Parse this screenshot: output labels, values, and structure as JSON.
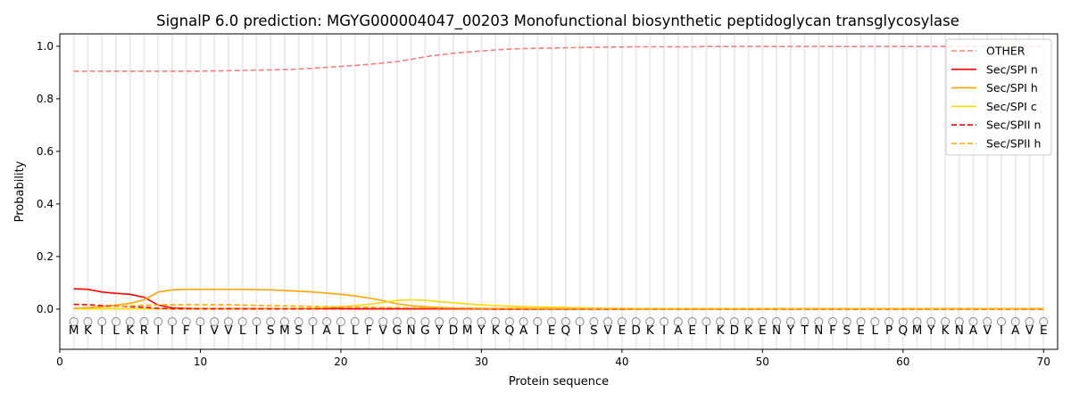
{
  "chart_data": {
    "type": "line",
    "title": "SignalP 6.0 prediction: MGYG000004047_00203 Monofunctional biosynthetic peptidoglycan transglycosylase",
    "xlabel": "Protein sequence",
    "ylabel": "Probability",
    "xlim": [
      0,
      71
    ],
    "ylim": [
      -0.153,
      1.047
    ],
    "xticks": [
      0,
      10,
      20,
      30,
      40,
      50,
      60,
      70
    ],
    "yticks": [
      "0.0",
      "0.2",
      "0.4",
      "0.6",
      "0.8",
      "1.0"
    ],
    "grid": "vertical at each residue",
    "legend_placement": "top-right",
    "sequence": [
      "M",
      "K",
      "I",
      "L",
      "K",
      "R",
      "I",
      "I",
      "F",
      "I",
      "V",
      "V",
      "L",
      "I",
      "S",
      "M",
      "S",
      "I",
      "A",
      "L",
      "L",
      "F",
      "V",
      "G",
      "N",
      "G",
      "Y",
      "D",
      "M",
      "Y",
      "K",
      "Q",
      "A",
      "I",
      "E",
      "Q",
      "I",
      "S",
      "V",
      "E",
      "D",
      "K",
      "I",
      "A",
      "E",
      "I",
      "K",
      "D",
      "K",
      "E",
      "N",
      "Y",
      "T",
      "N",
      "F",
      "S",
      "E",
      "L",
      "P",
      "Q",
      "M",
      "Y",
      "K",
      "N",
      "A",
      "V",
      "I",
      "A",
      "V",
      "E"
    ],
    "series": [
      {
        "name": "OTHER",
        "color": "#f08080",
        "dash": true,
        "values": [
          0.905,
          0.905,
          0.905,
          0.905,
          0.905,
          0.905,
          0.905,
          0.905,
          0.905,
          0.905,
          0.906,
          0.907,
          0.908,
          0.909,
          0.91,
          0.911,
          0.913,
          0.916,
          0.92,
          0.923,
          0.927,
          0.931,
          0.936,
          0.942,
          0.95,
          0.96,
          0.967,
          0.973,
          0.978,
          0.982,
          0.986,
          0.989,
          0.991,
          0.992,
          0.993,
          0.994,
          0.995,
          0.996,
          0.997,
          0.997,
          0.998,
          0.998,
          0.998,
          0.998,
          0.998,
          0.999,
          0.999,
          0.999,
          0.999,
          0.999,
          0.999,
          0.999,
          0.999,
          0.999,
          0.999,
          0.999,
          0.999,
          0.999,
          0.999,
          0.999,
          0.999,
          0.999,
          0.999,
          0.999,
          0.999,
          0.999,
          0.999,
          0.999,
          0.999,
          0.999
        ]
      },
      {
        "name": "Sec/SPI n",
        "color": "#ff0000",
        "dash": false,
        "values": [
          0.077,
          0.075,
          0.065,
          0.06,
          0.056,
          0.045,
          0.015,
          0.005,
          0.003,
          0.002,
          0.002,
          0.002,
          0.002,
          0.002,
          0.002,
          0.002,
          0.002,
          0.002,
          0.002,
          0.002,
          0.001,
          0.001,
          0.001,
          0.001,
          0.001,
          0.001,
          0.001,
          0.001,
          0.001,
          0.001,
          0.001,
          0.001,
          0.001,
          0.001,
          0.001,
          0.001,
          0.001,
          0.001,
          0.001,
          0.001,
          0.001,
          0.001,
          0.001,
          0.001,
          0.001,
          0.001,
          0.001,
          0.001,
          0.001,
          0.001,
          0.001,
          0.001,
          0.001,
          0.001,
          0.001,
          0.001,
          0.001,
          0.001,
          0.001,
          0.001,
          0.001,
          0.001,
          0.001,
          0.001,
          0.001,
          0.001,
          0.001,
          0.001,
          0.001,
          0.001
        ]
      },
      {
        "name": "Sec/SPI h",
        "color": "#ffa500",
        "dash": false,
        "values": [
          0.002,
          0.005,
          0.01,
          0.015,
          0.022,
          0.035,
          0.065,
          0.073,
          0.075,
          0.075,
          0.075,
          0.075,
          0.075,
          0.074,
          0.073,
          0.071,
          0.068,
          0.065,
          0.061,
          0.056,
          0.05,
          0.042,
          0.032,
          0.02,
          0.013,
          0.009,
          0.006,
          0.004,
          0.003,
          0.002,
          0.002,
          0.002,
          0.002,
          0.002,
          0.002,
          0.002,
          0.001,
          0.001,
          0.001,
          0.001,
          0.001,
          0.001,
          0.001,
          0.001,
          0.001,
          0.001,
          0.001,
          0.001,
          0.001,
          0.001,
          0.001,
          0.001,
          0.001,
          0.001,
          0.001,
          0.001,
          0.001,
          0.001,
          0.001,
          0.001,
          0.001,
          0.001,
          0.001,
          0.001,
          0.001,
          0.001,
          0.001,
          0.001,
          0.001,
          0.001
        ]
      },
      {
        "name": "Sec/SPI c",
        "color": "#ffd700",
        "dash": false,
        "values": [
          0.001,
          0.001,
          0.001,
          0.001,
          0.001,
          0.001,
          0.001,
          0.001,
          0.001,
          0.001,
          0.001,
          0.001,
          0.001,
          0.001,
          0.001,
          0.002,
          0.003,
          0.004,
          0.006,
          0.009,
          0.013,
          0.018,
          0.025,
          0.033,
          0.035,
          0.033,
          0.028,
          0.024,
          0.02,
          0.016,
          0.013,
          0.011,
          0.009,
          0.008,
          0.007,
          0.006,
          0.005,
          0.004,
          0.003,
          0.003,
          0.002,
          0.002,
          0.002,
          0.002,
          0.002,
          0.002,
          0.002,
          0.002,
          0.002,
          0.002,
          0.001,
          0.001,
          0.001,
          0.001,
          0.001,
          0.001,
          0.001,
          0.001,
          0.001,
          0.001,
          0.001,
          0.001,
          0.001,
          0.001,
          0.001,
          0.001,
          0.001,
          0.001,
          0.001,
          0.001
        ]
      },
      {
        "name": "Sec/SPII n",
        "color": "#ff0000",
        "dash": true,
        "values": [
          0.018,
          0.017,
          0.013,
          0.011,
          0.009,
          0.007,
          0.003,
          0.001,
          0.001,
          0.001,
          0.001,
          0.001,
          0.001,
          0.001,
          0.001,
          0.001,
          0.001,
          0.001,
          0.001,
          0.001,
          0.001,
          0.001,
          0.001,
          0.001,
          0.001,
          0.001,
          0.001,
          0.001,
          0.001,
          0.001,
          0.0,
          0.0,
          0.0,
          0.0,
          0.0,
          0.0,
          0.0,
          0.0,
          0.0,
          0.0,
          0.0,
          0.0,
          0.0,
          0.0,
          0.0,
          0.0,
          0.0,
          0.0,
          0.0,
          0.0,
          0.0,
          0.0,
          0.0,
          0.0,
          0.0,
          0.0,
          0.0,
          0.0,
          0.0,
          0.0,
          0.0,
          0.0,
          0.0,
          0.0,
          0.0,
          0.0,
          0.0,
          0.0,
          0.0,
          0.0
        ]
      },
      {
        "name": "Sec/SPII h",
        "color": "#ffa500",
        "dash": true,
        "values": [
          0.003,
          0.006,
          0.008,
          0.01,
          0.012,
          0.014,
          0.016,
          0.017,
          0.017,
          0.017,
          0.016,
          0.016,
          0.015,
          0.014,
          0.013,
          0.012,
          0.011,
          0.01,
          0.009,
          0.008,
          0.008,
          0.007,
          0.006,
          0.006,
          0.005,
          0.005,
          0.004,
          0.004,
          0.004,
          0.003,
          0.003,
          0.003,
          0.003,
          0.002,
          0.002,
          0.002,
          0.002,
          0.002,
          0.002,
          0.002,
          0.001,
          0.001,
          0.001,
          0.001,
          0.001,
          0.001,
          0.001,
          0.001,
          0.001,
          0.001,
          0.001,
          0.001,
          0.001,
          0.001,
          0.001,
          0.001,
          0.001,
          0.001,
          0.001,
          0.001,
          0.001,
          0.001,
          0.001,
          0.001,
          0.001,
          0.001,
          0.001,
          0.001,
          0.001,
          0.001
        ]
      }
    ]
  }
}
